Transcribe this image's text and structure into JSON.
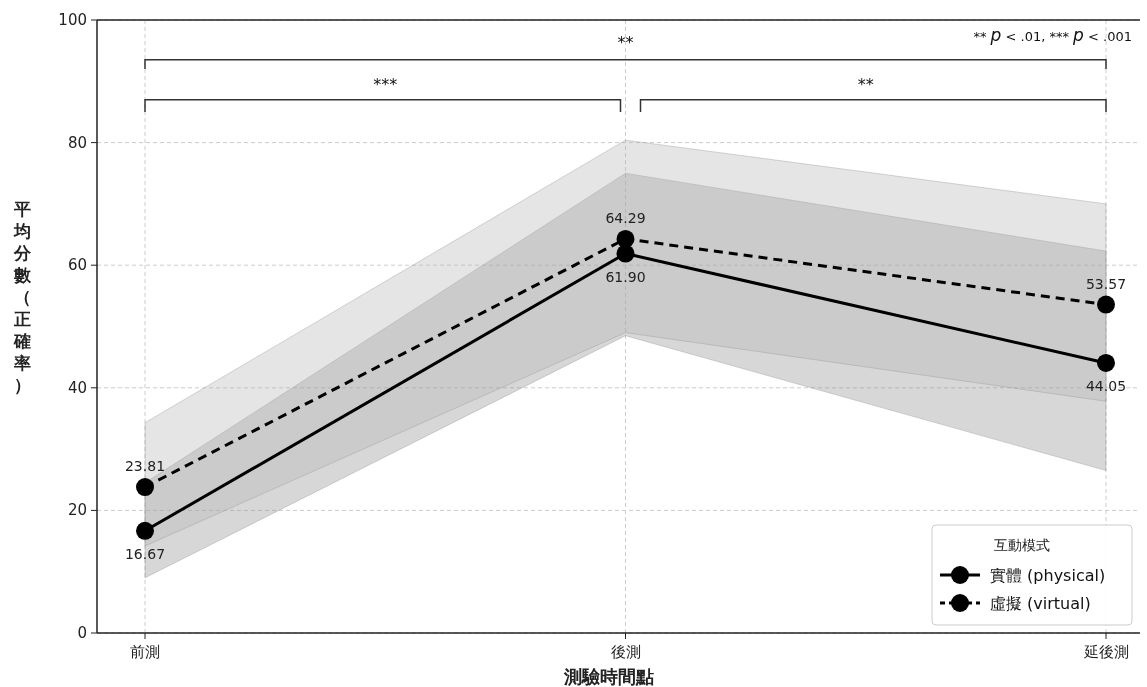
{
  "chart_data": {
    "type": "line",
    "xlabel": "測驗時間點",
    "ylabel": "平均分數（正確率）",
    "legend_title": "互動模式",
    "categories": [
      "前測",
      "後測",
      "延後測"
    ],
    "series": [
      {
        "name": "實體 (physical)",
        "color": "#000000",
        "line_style": "solid",
        "values": [
          16.67,
          61.9,
          44.05
        ],
        "value_labels": [
          "16.67",
          "61.90",
          "44.05"
        ],
        "lower": [
          9,
          48.5,
          26.5
        ],
        "upper": [
          24.5,
          75,
          62.3
        ]
      },
      {
        "name": "虛擬 (virtual)",
        "color": "#000000",
        "line_style": "dashed",
        "values": [
          23.81,
          64.29,
          53.57
        ],
        "value_labels": [
          "23.81",
          "64.29",
          "53.57"
        ],
        "lower": [
          14.2,
          49,
          37.8
        ],
        "upper": [
          34.3,
          80.4,
          70
        ]
      }
    ],
    "ylim": [
      0,
      100
    ],
    "yticks": [
      0,
      20,
      40,
      60,
      80,
      100
    ],
    "grid": true,
    "legend": "bottom right",
    "marker": "circle",
    "annotations": [
      "**",
      "***",
      "**",
      "** p < .01, *** p < .001"
    ]
  }
}
